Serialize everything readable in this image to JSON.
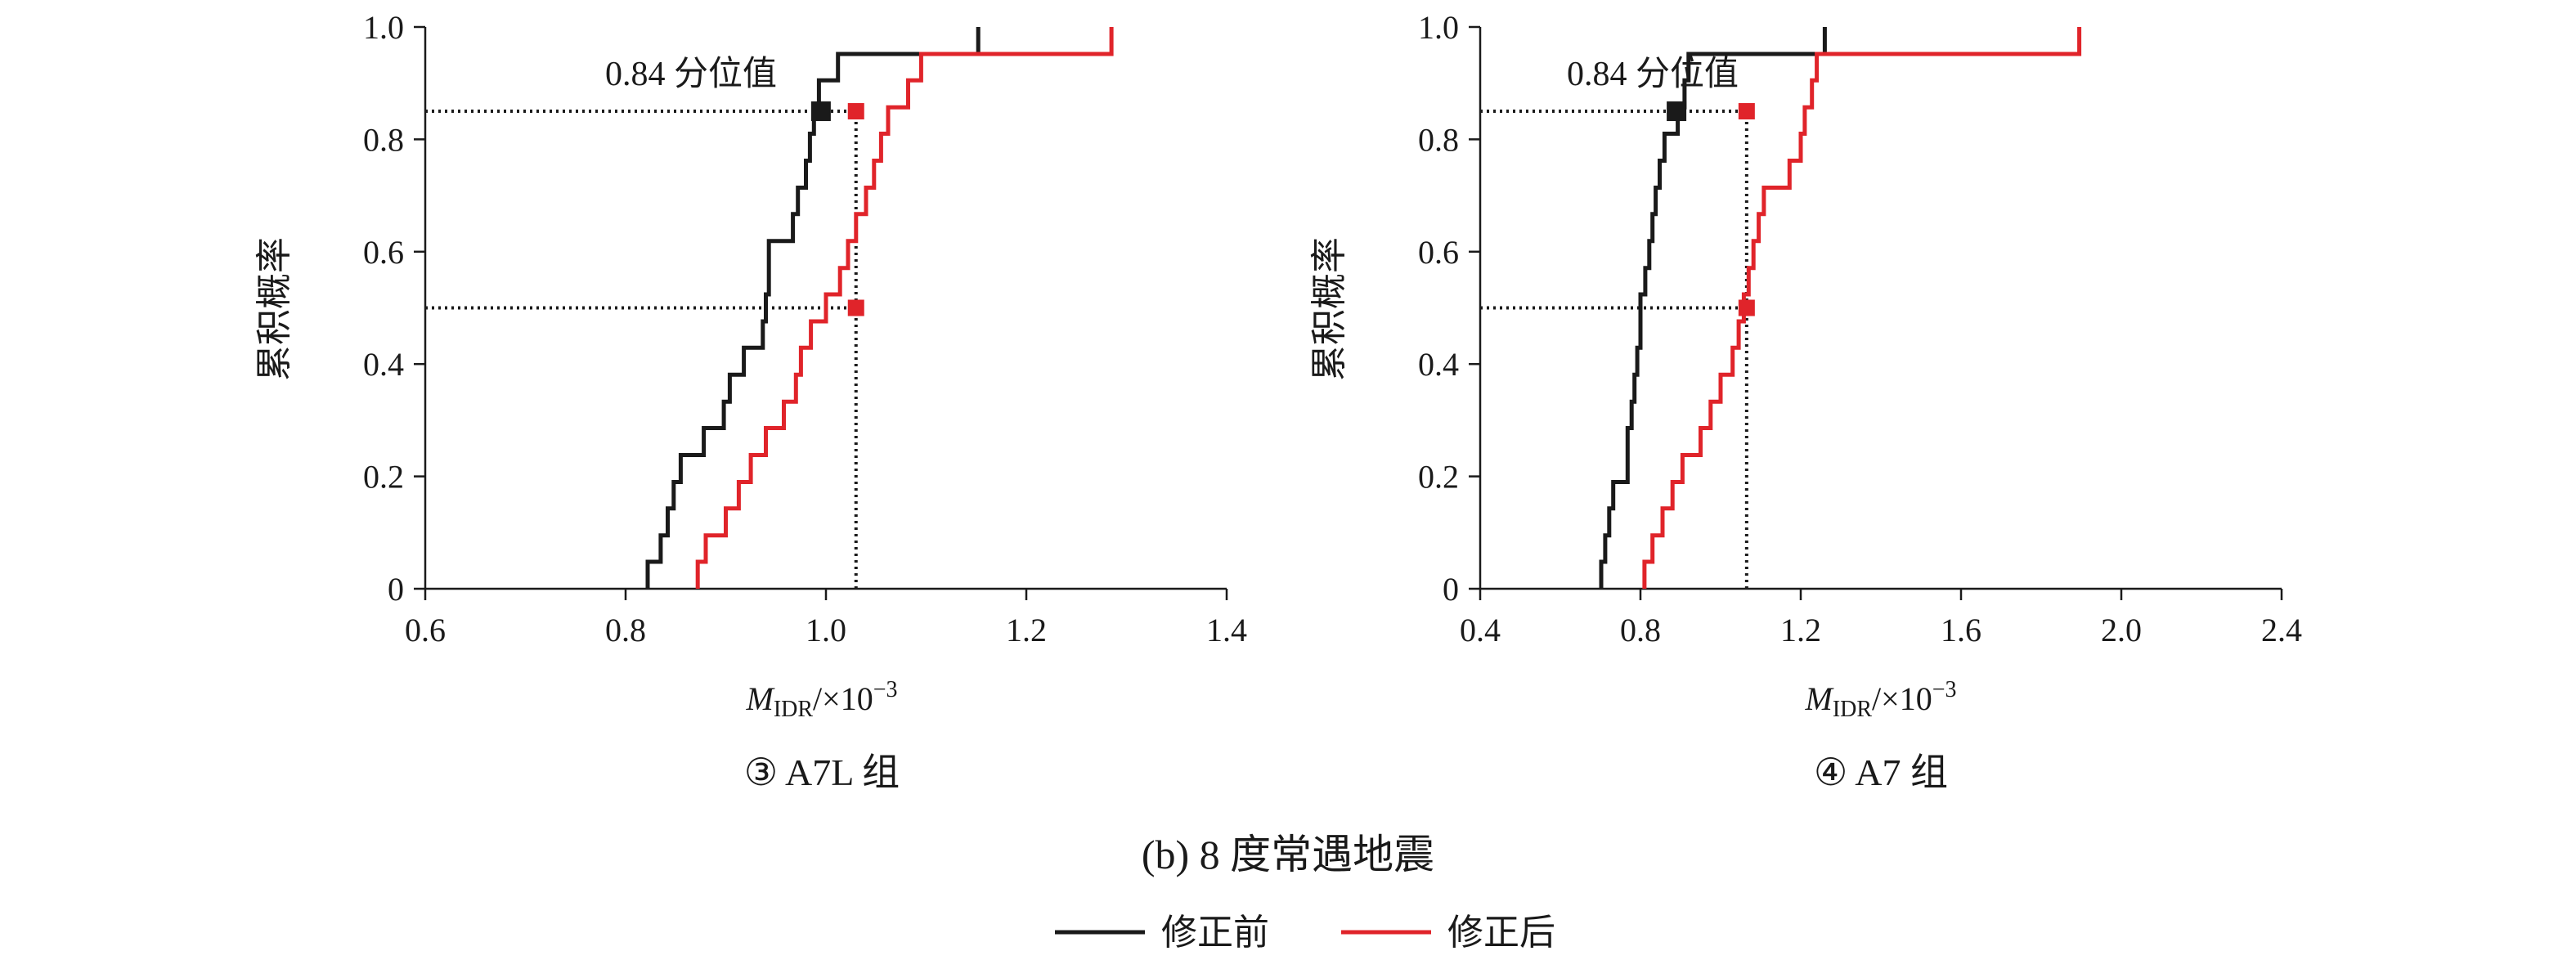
{
  "figure": {
    "caption": "(b) 8 度常遇地震",
    "legend": [
      {
        "label": "修正前",
        "color": "#1a1a1a"
      },
      {
        "label": "修正后",
        "color": "#e0242a"
      }
    ]
  },
  "chart_data": [
    {
      "type": "line",
      "subtitle": "③ A7L 组",
      "ylabel": "累积概率",
      "xlabel": "M",
      "xlabel_sub": "IDR",
      "xlabel_suffix": "/×10",
      "xlabel_exp": "−3",
      "xlim": [
        0.6,
        1.4
      ],
      "ylim": [
        0,
        1.0
      ],
      "xticks": [
        "0.6",
        "0.8",
        "1.0",
        "1.2",
        "1.4"
      ],
      "yticks": [
        "0",
        "0.2",
        "0.4",
        "0.6",
        "0.8",
        "1.0"
      ],
      "annotation": "0.84 分位值",
      "series": [
        {
          "name": "修正前",
          "color": "#1a1a1a",
          "x": [
            0.822,
            0.835,
            0.842,
            0.848,
            0.855,
            0.862,
            0.878,
            0.898,
            0.904,
            0.913,
            0.918,
            0.937,
            0.94,
            0.943,
            0.952,
            0.967,
            0.972,
            0.98,
            0.984,
            0.988,
            0.993,
            0.999,
            1.005,
            1.012,
            1.02,
            1.03,
            1.152
          ],
          "y": [
            0.048,
            0.095,
            0.143,
            0.19,
            0.238,
            0.238,
            0.286,
            0.333,
            0.381,
            0.381,
            0.429,
            0.476,
            0.524,
            0.619,
            0.619,
            0.667,
            0.714,
            0.762,
            0.81,
            0.857,
            0.905,
            0.905,
            0.905,
            0.952,
            0.952,
            0.952,
            1.0
          ]
        },
        {
          "name": "修正后",
          "color": "#e0242a",
          "x": [
            0.872,
            0.88,
            0.9,
            0.913,
            0.925,
            0.94,
            0.958,
            0.97,
            0.975,
            0.985,
            0.991,
            0.996,
            1.0,
            1.006,
            1.014,
            1.022,
            1.03,
            1.04,
            1.048,
            1.055,
            1.062,
            1.072,
            1.082,
            1.095,
            1.105,
            1.155,
            1.285
          ],
          "y": [
            0.048,
            0.095,
            0.143,
            0.19,
            0.238,
            0.286,
            0.333,
            0.381,
            0.429,
            0.476,
            0.476,
            0.476,
            0.524,
            0.524,
            0.571,
            0.619,
            0.667,
            0.714,
            0.762,
            0.81,
            0.857,
            0.857,
            0.905,
            0.952,
            0.952,
            0.952,
            1.0
          ]
        }
      ],
      "markers": [
        {
          "series": "修正前",
          "x": 0.995,
          "y": 0.85
        },
        {
          "series": "修正后",
          "x": 1.03,
          "y": 0.85
        },
        {
          "series": "修正后",
          "x": 1.03,
          "y": 0.5
        }
      ],
      "reference_lines": [
        {
          "y": 0.85,
          "x_to": 1.03
        },
        {
          "y": 0.5,
          "x_to": 1.03
        },
        {
          "x": 1.03,
          "y_to": 0.85
        }
      ]
    },
    {
      "type": "line",
      "subtitle": "④ A7 组",
      "ylabel": "累积概率",
      "xlabel": "M",
      "xlabel_sub": "IDR",
      "xlabel_suffix": "/×10",
      "xlabel_exp": "−3",
      "xlim": [
        0.4,
        2.4
      ],
      "ylim": [
        0,
        1.0
      ],
      "xticks": [
        "0.4",
        "0.8",
        "1.2",
        "1.6",
        "2.0",
        "2.4"
      ],
      "yticks": [
        "0",
        "0.2",
        "0.4",
        "0.6",
        "0.8",
        "1.0"
      ],
      "annotation": "0.84 分位值",
      "series": [
        {
          "name": "修正前",
          "color": "#1a1a1a",
          "x": [
            0.702,
            0.712,
            0.722,
            0.732,
            0.768,
            0.778,
            0.785,
            0.792,
            0.8,
            0.812,
            0.822,
            0.83,
            0.838,
            0.848,
            0.86,
            0.875,
            0.893,
            0.91,
            0.92,
            0.93,
            1.26
          ],
          "y": [
            0.048,
            0.095,
            0.143,
            0.19,
            0.286,
            0.333,
            0.381,
            0.429,
            0.524,
            0.571,
            0.619,
            0.667,
            0.714,
            0.762,
            0.81,
            0.81,
            0.857,
            0.905,
            0.952,
            0.952,
            1.0
          ]
        },
        {
          "name": "修正后",
          "color": "#e0242a",
          "x": [
            0.81,
            0.83,
            0.855,
            0.88,
            0.905,
            0.95,
            0.975,
            1.0,
            1.03,
            1.045,
            1.058,
            1.07,
            1.082,
            1.095,
            1.108,
            1.14,
            1.172,
            1.2,
            1.21,
            1.228,
            1.24,
            1.255,
            1.27,
            1.895
          ],
          "y": [
            0.048,
            0.095,
            0.143,
            0.19,
            0.238,
            0.286,
            0.333,
            0.381,
            0.429,
            0.476,
            0.524,
            0.571,
            0.619,
            0.667,
            0.714,
            0.714,
            0.762,
            0.81,
            0.857,
            0.905,
            0.952,
            0.952,
            0.952,
            1.0
          ]
        }
      ],
      "markers": [
        {
          "series": "修正前",
          "x": 0.89,
          "y": 0.85
        },
        {
          "series": "修正后",
          "x": 1.065,
          "y": 0.85
        },
        {
          "series": "修正后",
          "x": 1.065,
          "y": 0.5
        }
      ],
      "reference_lines": [
        {
          "y": 0.85,
          "x_to": 1.065
        },
        {
          "y": 0.5,
          "x_to": 1.065
        },
        {
          "x": 1.065,
          "y_to": 0.85
        }
      ]
    }
  ]
}
